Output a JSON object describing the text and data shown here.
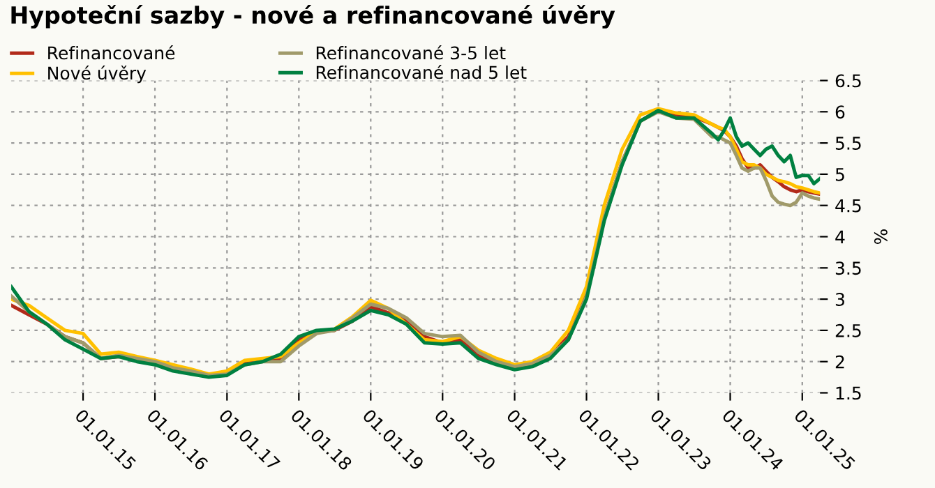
{
  "chart_data": {
    "type": "line",
    "title": "Hypoteční sazby - nové a refinancované úvěry",
    "ylabel": "%",
    "x": [
      "2014-01",
      "2014-04",
      "2014-07",
      "2014-10",
      "2015-01",
      "2015-04",
      "2015-07",
      "2015-10",
      "2016-01",
      "2016-04",
      "2016-07",
      "2016-10",
      "2017-01",
      "2017-04",
      "2017-07",
      "2017-10",
      "2018-01",
      "2018-04",
      "2018-07",
      "2018-10",
      "2019-01",
      "2019-04",
      "2019-07",
      "2019-10",
      "2020-01",
      "2020-04",
      "2020-07",
      "2020-10",
      "2021-01",
      "2021-04",
      "2021-07",
      "2021-10",
      "2022-01",
      "2022-04",
      "2022-07",
      "2022-10",
      "2023-01",
      "2023-04",
      "2023-07",
      "2023-10",
      "2023-11",
      "2023-12",
      "2024-01",
      "2024-02",
      "2024-03",
      "2024-04",
      "2024-05",
      "2024-06",
      "2024-07",
      "2024-08",
      "2024-09",
      "2024-10",
      "2024-11",
      "2024-12",
      "2025-01",
      "2025-02",
      "2025-03",
      "2025-04"
    ],
    "series": [
      {
        "name": "Refinancované",
        "color": "#b22a1a",
        "values": [
          2.9,
          2.75,
          2.6,
          2.4,
          2.3,
          2.05,
          2.08,
          2.05,
          2.0,
          1.9,
          1.85,
          1.78,
          1.8,
          1.97,
          2.02,
          2.05,
          2.35,
          2.48,
          2.5,
          2.65,
          2.88,
          2.78,
          2.65,
          2.4,
          2.3,
          2.35,
          2.1,
          1.98,
          1.9,
          1.95,
          2.1,
          2.4,
          3.1,
          4.3,
          5.2,
          5.85,
          6.02,
          5.95,
          5.92,
          5.8,
          5.75,
          5.7,
          5.6,
          5.45,
          5.25,
          5.1,
          5.1,
          5.15,
          5.05,
          4.95,
          4.88,
          4.8,
          4.75,
          4.72,
          4.75,
          4.72,
          4.7,
          4.68
        ]
      },
      {
        "name": "Nové úvěry",
        "color": "#ffc000",
        "values": [
          3.0,
          2.9,
          2.7,
          2.5,
          2.45,
          2.12,
          2.15,
          2.08,
          2.02,
          1.95,
          1.88,
          1.8,
          1.85,
          2.02,
          2.05,
          2.08,
          2.3,
          2.48,
          2.52,
          2.72,
          2.98,
          2.85,
          2.6,
          2.35,
          2.32,
          2.4,
          2.18,
          2.05,
          1.95,
          2.0,
          2.15,
          2.5,
          3.2,
          4.5,
          5.4,
          5.95,
          6.05,
          5.98,
          5.95,
          5.8,
          5.75,
          5.72,
          5.6,
          5.4,
          5.2,
          5.15,
          5.15,
          5.1,
          5.0,
          4.95,
          4.9,
          4.88,
          4.85,
          4.8,
          4.78,
          4.75,
          4.72,
          4.7
        ]
      },
      {
        "name": "Refinancované 3-5 let",
        "color": "#a09a6a",
        "values": [
          3.05,
          2.8,
          2.6,
          2.4,
          2.3,
          2.05,
          2.1,
          2.05,
          2.0,
          1.9,
          1.85,
          1.78,
          1.8,
          1.95,
          2.0,
          2.0,
          2.25,
          2.45,
          2.5,
          2.7,
          2.92,
          2.85,
          2.7,
          2.45,
          2.4,
          2.42,
          2.15,
          2.0,
          1.92,
          1.97,
          2.1,
          2.35,
          3.05,
          4.3,
          5.2,
          5.85,
          6.0,
          5.9,
          5.88,
          5.6,
          5.6,
          5.55,
          5.5,
          5.3,
          5.1,
          5.05,
          5.1,
          5.1,
          4.9,
          4.65,
          4.55,
          4.52,
          4.5,
          4.55,
          4.7,
          4.65,
          4.62,
          4.6
        ]
      },
      {
        "name": "Refinancované nad 5 let",
        "color": "#008040",
        "values": [
          3.2,
          2.8,
          2.6,
          2.35,
          2.2,
          2.05,
          2.08,
          2.0,
          1.95,
          1.85,
          1.8,
          1.75,
          1.78,
          1.95,
          2.0,
          2.12,
          2.4,
          2.5,
          2.52,
          2.65,
          2.82,
          2.75,
          2.6,
          2.3,
          2.28,
          2.3,
          2.05,
          1.95,
          1.87,
          1.92,
          2.05,
          2.35,
          3.0,
          4.25,
          5.15,
          5.85,
          6.02,
          5.9,
          5.9,
          5.65,
          5.55,
          5.7,
          5.9,
          5.6,
          5.45,
          5.5,
          5.4,
          5.3,
          5.4,
          5.45,
          5.3,
          5.2,
          5.3,
          4.95,
          4.98,
          4.98,
          4.85,
          4.93
        ]
      }
    ],
    "xlim": [
      "2014-01-01",
      "2025-04-01"
    ],
    "xticks": [
      {
        "value": "2015-01-01",
        "label": "01.01.15"
      },
      {
        "value": "2016-01-01",
        "label": "01.01.16"
      },
      {
        "value": "2017-01-01",
        "label": "01.01.17"
      },
      {
        "value": "2018-01-01",
        "label": "01.01.18"
      },
      {
        "value": "2019-01-01",
        "label": "01.01.19"
      },
      {
        "value": "2020-01-01",
        "label": "01.01.20"
      },
      {
        "value": "2021-01-01",
        "label": "01.01.21"
      },
      {
        "value": "2022-01-01",
        "label": "01.01.22"
      },
      {
        "value": "2023-01-01",
        "label": "01.01.23"
      },
      {
        "value": "2024-01-01",
        "label": "01.01.24"
      },
      {
        "value": "2025-01-01",
        "label": "01.01.25"
      }
    ],
    "ylim": [
      1.5,
      6.5
    ],
    "yticks": [
      1.5,
      2,
      2.5,
      3,
      3.5,
      4,
      4.5,
      5,
      5.5,
      6,
      6.5
    ],
    "grid": true,
    "legend": "top left",
    "marker": "none",
    "line_style": "solid"
  }
}
